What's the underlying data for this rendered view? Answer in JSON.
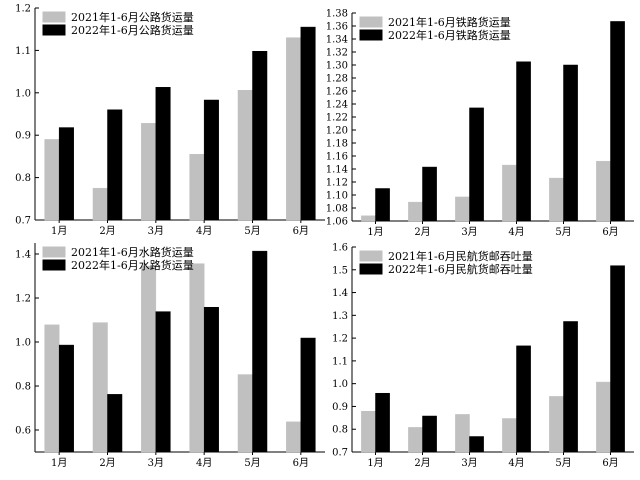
{
  "chart_data": [
    {
      "type": "bar",
      "categories": [
        "1月",
        "2月",
        "3月",
        "4月",
        "5月",
        "6月"
      ],
      "series": [
        {
          "name": "2021年1-6月公路货运量",
          "values": [
            0.89,
            0.775,
            0.928,
            0.855,
            1.006,
            1.13
          ],
          "color": "#c0c0c0"
        },
        {
          "name": "2022年1-6月公路货运量",
          "values": [
            0.918,
            0.96,
            1.013,
            0.983,
            1.098,
            1.155
          ],
          "color": "#000000"
        }
      ],
      "ylim": [
        0.7,
        1.2
      ],
      "yticks": [
        "0.7",
        "0.8",
        "0.9",
        "1.0",
        "1.1",
        "1.2"
      ],
      "legend": "top-left",
      "grid": false
    },
    {
      "type": "bar",
      "categories": [
        "1月",
        "2月",
        "3月",
        "4月",
        "5月",
        "6月"
      ],
      "series": [
        {
          "name": "2021年1-6月铁路货运量",
          "values": [
            1.068,
            1.089,
            1.097,
            1.146,
            1.126,
            1.152
          ],
          "color": "#c0c0c0"
        },
        {
          "name": "2022年1-6月铁路货运量",
          "values": [
            1.11,
            1.143,
            1.234,
            1.305,
            1.3,
            1.367
          ],
          "color": "#000000"
        }
      ],
      "ylim": [
        1.06,
        1.38
      ],
      "yticks": [
        "1.06",
        "1.08",
        "1.10",
        "1.12",
        "1.14",
        "1.16",
        "1.18",
        "1.20",
        "1.22",
        "1.24",
        "1.26",
        "1.28",
        "1.30",
        "1.32",
        "1.34",
        "1.36",
        "1.38"
      ],
      "legend": "top-left",
      "grid": false
    },
    {
      "type": "bar",
      "categories": [
        "1月",
        "2月",
        "3月",
        "4月",
        "5月",
        "6月"
      ],
      "series": [
        {
          "name": "2021年1-6月水路货运量",
          "values": [
            1.078,
            1.088,
            1.345,
            1.356,
            0.852,
            0.637
          ],
          "color": "#c0c0c0"
        },
        {
          "name": "2022年1-6月水路货运量",
          "values": [
            0.986,
            0.762,
            1.138,
            1.158,
            1.413,
            1.018
          ],
          "color": "#000000"
        }
      ],
      "ylim": [
        0.5,
        1.45
      ],
      "yticks": [
        "0.6",
        "0.8",
        "1.0",
        "1.2",
        "1.4"
      ],
      "legend": "top-left",
      "grid": false
    },
    {
      "type": "bar",
      "categories": [
        "1月",
        "2月",
        "3月",
        "4月",
        "5月",
        "6月"
      ],
      "series": [
        {
          "name": "2021年1-6月民航货邮吞吐量",
          "values": [
            0.879,
            0.808,
            0.865,
            0.847,
            0.944,
            1.007
          ],
          "color": "#c0c0c0"
        },
        {
          "name": "2022年1-6月民航货邮吞吐量",
          "values": [
            0.958,
            0.858,
            0.768,
            1.166,
            1.273,
            1.518
          ],
          "color": "#000000"
        }
      ],
      "ylim": [
        0.7,
        1.6
      ],
      "yticks": [
        "0.7",
        "0.8",
        "0.9",
        "1.0",
        "1.1",
        "1.2",
        "1.3",
        "1.4",
        "1.5",
        "1.6"
      ],
      "legend": "top-left",
      "grid": false
    }
  ]
}
